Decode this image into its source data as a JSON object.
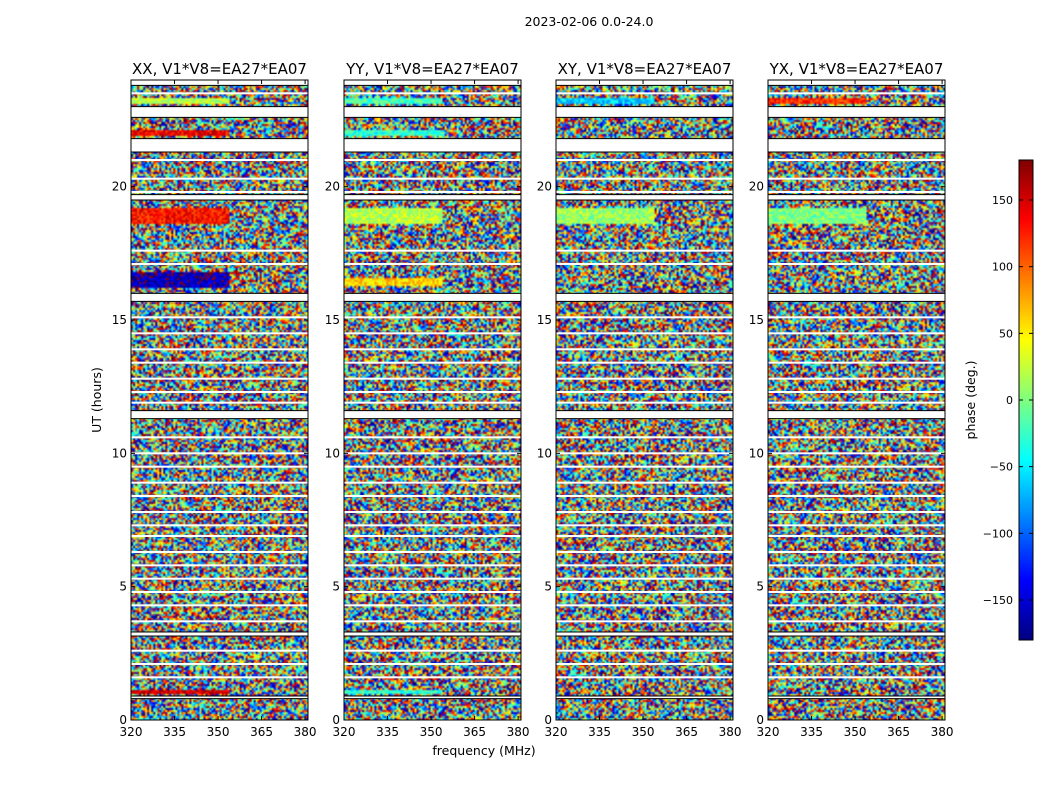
{
  "chart_data": {
    "type": "heatmap",
    "suptitle": "2023-02-06 0.0-24.0",
    "xlabel": "frequency (MHz)",
    "ylabel": "UT (hours)",
    "xlim": [
      320,
      381
    ],
    "ylim": [
      0,
      24
    ],
    "xticks": [
      320,
      335,
      350,
      365,
      380
    ],
    "yticks": [
      0,
      5,
      10,
      15,
      20
    ],
    "colorbar": {
      "label": "phase (deg.)",
      "range": [
        -180,
        180
      ],
      "ticks": [
        150,
        100,
        50,
        0,
        -50,
        -100,
        -150
      ],
      "tick_labels": [
        "150",
        "100",
        "50",
        "0",
        "−50",
        "−100",
        "−150"
      ],
      "colormap": "jet"
    },
    "panels": [
      {
        "title": "XX, V1*V8=EA27*EA07",
        "coherent_bands": [
          {
            "t0": 23.1,
            "t1": 23.3,
            "phase": 20
          },
          {
            "t0": 21.9,
            "t1": 22.1,
            "phase": 140
          },
          {
            "t0": 18.6,
            "t1": 19.2,
            "phase": 130
          },
          {
            "t0": 16.2,
            "t1": 16.8,
            "phase": -160
          },
          {
            "t0": 1.0,
            "t1": 1.1,
            "phase": 150
          }
        ]
      },
      {
        "title": "YY, V1*V8=EA27*EA07",
        "coherent_bands": [
          {
            "t0": 23.1,
            "t1": 23.3,
            "phase": -20
          },
          {
            "t0": 21.9,
            "t1": 22.1,
            "phase": -30
          },
          {
            "t0": 18.6,
            "t1": 19.2,
            "phase": 20
          },
          {
            "t0": 16.3,
            "t1": 16.6,
            "phase": 60
          },
          {
            "t0": 1.0,
            "t1": 1.1,
            "phase": -30
          }
        ]
      },
      {
        "title": "XY, V1*V8=EA27*EA07",
        "coherent_bands": [
          {
            "t0": 23.1,
            "t1": 23.3,
            "phase": -60
          },
          {
            "t0": 18.6,
            "t1": 19.2,
            "phase": 10
          }
        ]
      },
      {
        "title": "YX, V1*V8=EA27*EA07",
        "coherent_bands": [
          {
            "t0": 23.1,
            "t1": 23.3,
            "phase": 120
          },
          {
            "t0": 18.6,
            "t1": 19.2,
            "phase": 0
          }
        ]
      }
    ],
    "flagged_gaps_hours": [
      [
        23.8,
        24.0
      ],
      [
        22.6,
        23.0
      ],
      [
        21.3,
        21.8
      ],
      [
        19.5,
        19.7
      ],
      [
        15.7,
        16.0
      ],
      [
        11.3,
        11.6
      ],
      [
        3.15,
        3.3
      ],
      [
        0.8,
        0.9
      ]
    ],
    "flagged_lines_hours": [
      23.5,
      21.0,
      20.3,
      19.8,
      17.6,
      17.1,
      15.1,
      14.5,
      13.9,
      13.4,
      12.8,
      12.3,
      11.9,
      10.6,
      10.0,
      9.5,
      8.9,
      8.4,
      7.8,
      7.3,
      6.9,
      6.3,
      5.8,
      5.3,
      4.8,
      4.3,
      3.7,
      2.6,
      2.1,
      1.6
    ]
  }
}
